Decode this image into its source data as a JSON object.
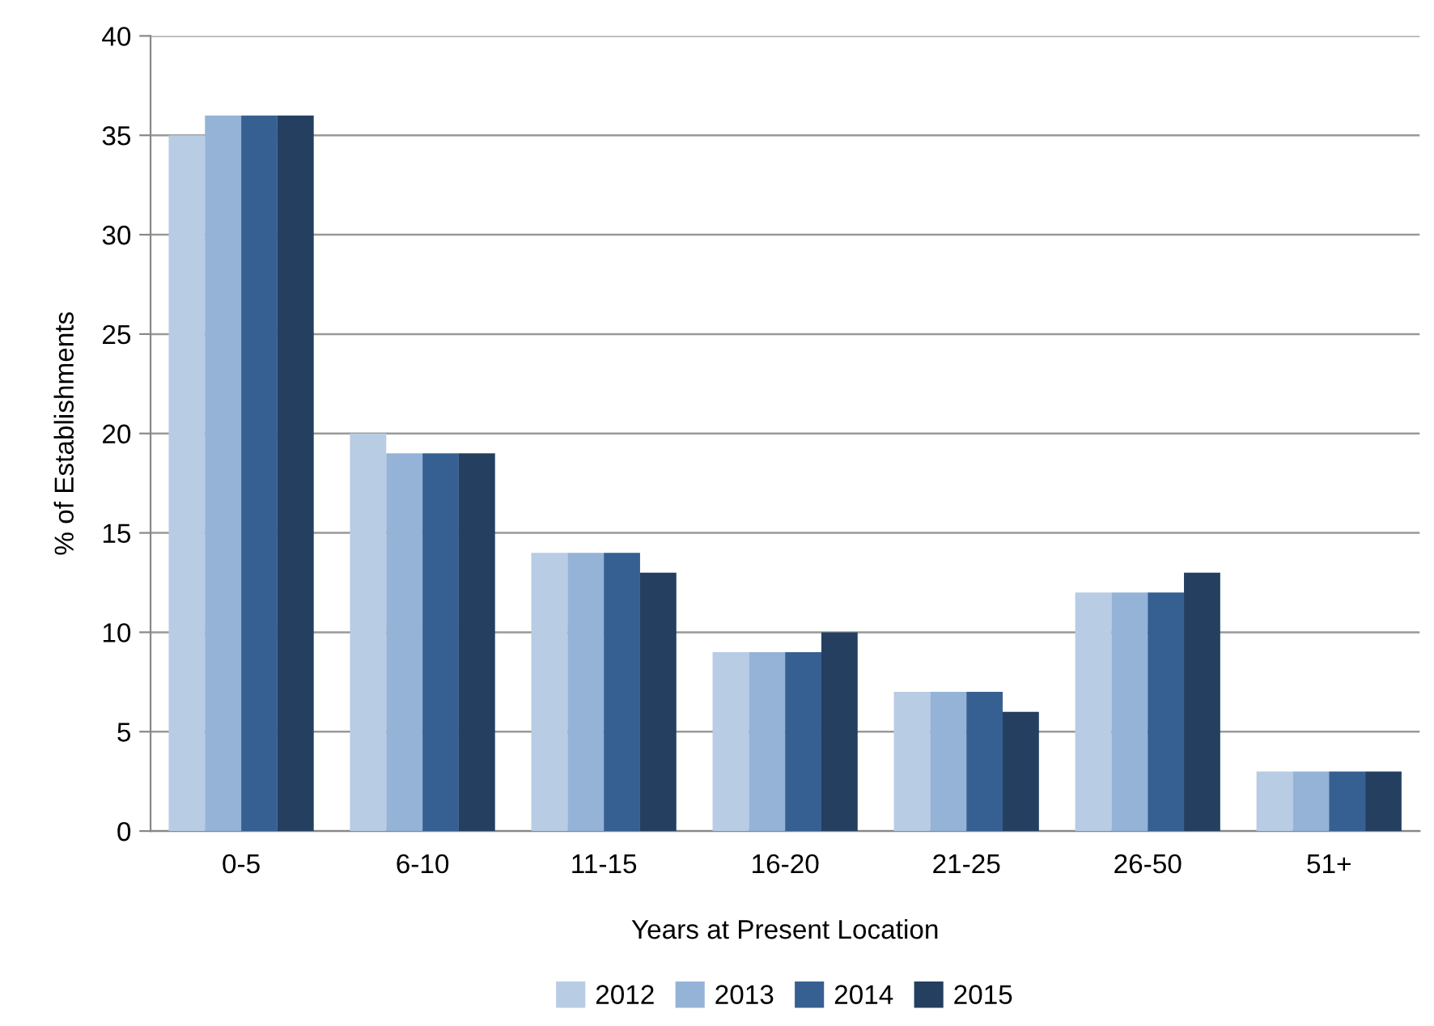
{
  "chart_data": {
    "type": "bar",
    "xlabel": "Years at Present Location",
    "ylabel": "% of Establishments",
    "categories": [
      "0-5",
      "6-10",
      "11-15",
      "16-20",
      "21-25",
      "26-50",
      "51+"
    ],
    "series": [
      {
        "name": "2012",
        "color": "#b8cce4",
        "values": [
          35,
          20,
          14,
          9,
          7,
          12,
          3
        ]
      },
      {
        "name": "2013",
        "color": "#95b3d7",
        "values": [
          36,
          19,
          14,
          9,
          7,
          12,
          3
        ]
      },
      {
        "name": "2014",
        "color": "#366092",
        "values": [
          36,
          19,
          14,
          9,
          7,
          12,
          3
        ]
      },
      {
        "name": "2015",
        "color": "#243f60",
        "values": [
          36,
          19,
          13,
          10,
          6,
          13,
          3
        ]
      }
    ],
    "ylim": [
      0,
      40
    ],
    "yticks": [
      0,
      5,
      10,
      15,
      20,
      25,
      30,
      35,
      40
    ],
    "grid": "y",
    "legend": "bottom"
  }
}
